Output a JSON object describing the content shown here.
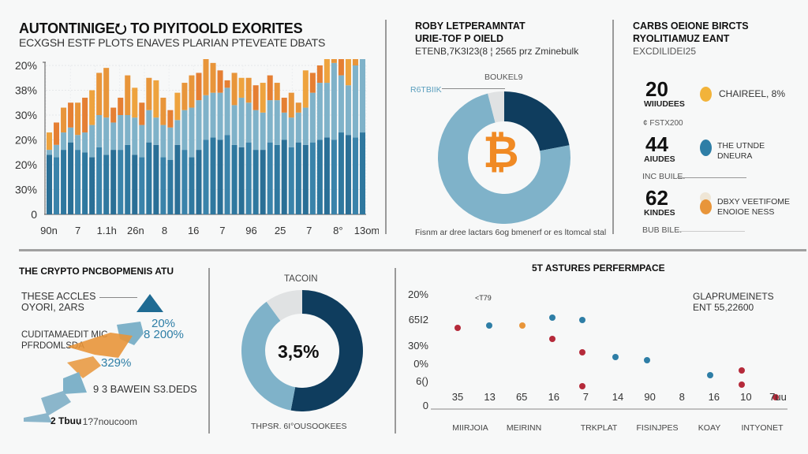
{
  "panel_bars": {
    "title": "AUTONTINIGE⭮ TO PIYITOOLD EXORITES",
    "subtitle": "ECXGSH ESTF PLOTS ENAVES PLARIAN PTEVEATE DBATS"
  },
  "panel_donut_top": {
    "title_line1": "ROBY LETPERAMNTAT",
    "title_line2": "URIE-TOF P OIELD",
    "subtitle": "ETENB,7K3I23(8 ¦ 2565 prz Zminebulk",
    "ring_label": "BOUKEL9",
    "callout_label": "R6TBIIK",
    "center_icon": "bitcoin-icon",
    "center_glyph": "₿",
    "caption": "Fisnm ar dree lactars 6og bmenerf or es ltomcal stal"
  },
  "panel_stats": {
    "title_line1": "CARBS OEIONE BIRCTS",
    "title_line2": "RYOLITIAMUZ EANT",
    "subtitle": "EXCDILIDEI25",
    "stats": [
      {
        "number": "20",
        "unit": "WIIUDEES",
        "dot_color": "#f2b33a",
        "text_line1": "CHAIREEL, 8%",
        "text_line2": "",
        "divider_label": "¢ FSTX200"
      },
      {
        "number": "44",
        "unit": "AIUDES",
        "dot_color": "#2e7ea6",
        "text_line1": "THE UTNDE",
        "text_line2": "DNEURA",
        "divider_label": "INC BUILE."
      },
      {
        "number": "62",
        "unit": "KINDES",
        "dot_color": "#e8953a",
        "text_line1": "DBXY VEETIFOME",
        "text_line2": "ENOIOE NESS",
        "divider_label": "BUB BILE."
      }
    ]
  },
  "panel_funnel": {
    "title": "THE CRYPTO PNCBOPMENIS ATU",
    "label1_line1": "THESE ACCLES",
    "label1_line2": "OYORI, 2ARS",
    "pct1": "20%",
    "pct2": "8 200%",
    "label2_line1": "CUDITAMAEDIT MIC",
    "label2_line2": "PFRDOMLSDA",
    "pct3": "329%",
    "row4": "9 3 BAWEIN S3.DEDS",
    "row5_bold": "2 Tbuu",
    "row5_rest": ". 1?7noucoom"
  },
  "panel_donut_bottom": {
    "title": "TACOIN",
    "center_value": "3,5%",
    "caption": "THPSR. 6I°OUSOOKEES"
  },
  "panel_area": {
    "title": "5T ASTURES PERFERMPACE",
    "annotation_line1": "GLAPRUMEINETS",
    "annotation_line2": "ENT 55,22600",
    "point_tag": "<T79"
  },
  "colors": {
    "navy": "#0f3d5e",
    "blue": "#2e7ea6",
    "light_blue": "#7fb2c9",
    "orange": "#e8953a",
    "amber": "#f2b33a",
    "grey": "#e0e2e3",
    "red": "#b52a3a"
  },
  "chart_data": [
    {
      "type": "bar",
      "stacked": true,
      "title": "AUTONTINIGE TO PIYITOOLD EXORITES",
      "y_tick_labels": [
        "0",
        "30%",
        "20%",
        "20%",
        "30%",
        "38%",
        "20%"
      ],
      "x_tick_labels": [
        "90n",
        "7",
        "1.1h",
        "26n",
        "8",
        "16",
        "7",
        "96",
        "25",
        "7",
        "8°",
        "13om"
      ],
      "ylim": [
        0,
        6
      ],
      "grid": true,
      "series": [
        {
          "name": "dark",
          "color": "#2e7ea6",
          "values": [
            2.4,
            2.3,
            2.6,
            2.9,
            2.6,
            2.5,
            2.3,
            2.7,
            2.4,
            2.6,
            2.6,
            2.8,
            2.4,
            2.3,
            2.9,
            2.8,
            2.3,
            2.2,
            2.8,
            2.6,
            2.3,
            2.6,
            3.0,
            3.1,
            3.0,
            3.2,
            2.8,
            2.7,
            2.9,
            2.6,
            2.6,
            2.9,
            2.8,
            3.0,
            2.7,
            2.9,
            2.8,
            2.9,
            3.0,
            3.1,
            3.0,
            3.3,
            3.2,
            3.1,
            3.3
          ]
        },
        {
          "name": "light",
          "color": "#7fb2c9",
          "values": [
            0.2,
            0.5,
            0.7,
            0.6,
            0.6,
            0.8,
            1.3,
            1.3,
            1.5,
            1.1,
            1.4,
            1.2,
            1.5,
            1.3,
            1.3,
            1.1,
            1.3,
            1.3,
            1.0,
            1.6,
            2.0,
            2.0,
            1.8,
            1.8,
            1.9,
            1.9,
            1.6,
            2.0,
            1.6,
            1.6,
            1.5,
            1.7,
            1.8,
            1.1,
            1.2,
            1.2,
            1.5,
            2.0,
            2.3,
            2.2,
            3.1,
            2.3,
            2.0,
            2.9,
            3.1
          ]
        },
        {
          "name": "orange",
          "color": "#e8953a",
          "values": [
            0.7,
            0.9,
            1.0,
            1.0,
            1.3,
            1.4,
            1.4,
            1.7,
            2.0,
            0.6,
            0.7,
            1.6,
            1.2,
            0.9,
            1.3,
            1.5,
            1.1,
            0.7,
            1.1,
            1.1,
            1.3,
            1.1,
            1.9,
            1.2,
            0.9,
            0.3,
            1.3,
            0.8,
            1.0,
            1.0,
            1.2,
            1.0,
            0.7,
            0.6,
            1.0,
            0.4,
            1.5,
            0.8,
            0.7,
            1.6,
            1.1,
            1.9,
            1.7,
            1.0,
            1.8
          ]
        }
      ]
    },
    {
      "type": "pie",
      "donut": true,
      "title": "ROBY LETPERAMNTAT URIE-TOF P OIELD",
      "labels": [
        "navy",
        "light_blue",
        "grey"
      ],
      "values": [
        22,
        74,
        4
      ],
      "colors": [
        "#0f3d5e",
        "#7fb2c9",
        "#e0e2e3"
      ]
    },
    {
      "type": "pie",
      "donut": true,
      "title": "TACOIN",
      "labels": [
        "navy",
        "light_blue",
        "grey"
      ],
      "values": [
        53,
        37,
        10
      ],
      "colors": [
        "#0f3d5e",
        "#7fb2c9",
        "#e0e2e3"
      ],
      "center_label": "3,5%"
    },
    {
      "type": "area",
      "title": "5T ASTURES PERFERMPACE",
      "y_tick_labels": [
        "0",
        "6()",
        "0%",
        "30%",
        "65I2",
        "20%"
      ],
      "x_tick_labels": [
        "35",
        "13",
        "65",
        "16",
        "7",
        "14",
        "90",
        "8",
        "16",
        "10",
        "7uu"
      ],
      "x_category_labels": [
        "MIIRJOIA",
        "MEIRINN",
        "TRKPLAT",
        "FISINJPES",
        "KOAY",
        "INTYONET"
      ],
      "ylim": [
        0,
        100
      ],
      "series": [
        {
          "name": "line",
          "color": "#1f5f7f",
          "values": [
            78,
            66,
            58,
            58,
            75,
            88,
            40,
            22,
            14,
            14,
            36,
            12
          ]
        },
        {
          "name": "orange-area",
          "color": "#e8953a",
          "values": [
            62,
            36,
            30,
            24,
            30,
            16,
            6,
            12,
            12,
            40,
            14
          ]
        },
        {
          "name": "beige-area",
          "color": "#efe3cf",
          "values": [
            70,
            78,
            74,
            70,
            84,
            58,
            12,
            18,
            18,
            46,
            30
          ]
        }
      ]
    }
  ]
}
